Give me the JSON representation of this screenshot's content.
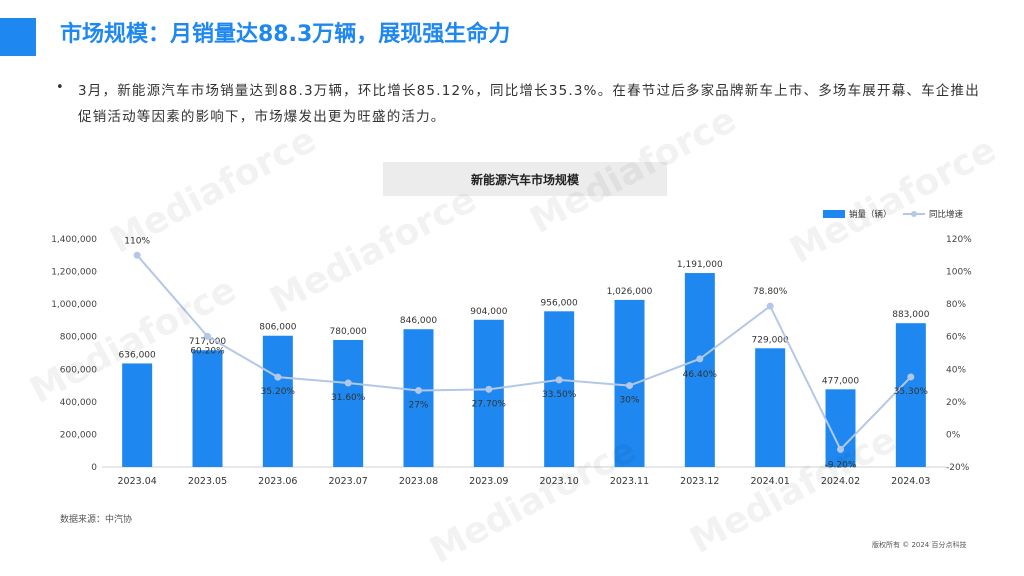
{
  "header": {
    "title": "市场规模：月销量达88.3万辆，展现强生命力"
  },
  "body": {
    "bullet": "•",
    "paragraph": "3月，新能源汽车市场销量达到88.3万辆，环比增长85.12%，同比增长35.3%。在春节过后多家品牌新车上市、多场车展开幕、车企推出促销活动等因素的影响下，市场爆发出更为旺盛的活力。"
  },
  "chart_title": "新能源汽车市场规模",
  "source": "数据来源：中汽协",
  "copyright": "版权所有 © 2024 百分点科技",
  "watermark": "Mediaforce",
  "colors": {
    "bar": "#1e88f0",
    "line": "#b3c8e8",
    "accent": "#1e88f0"
  },
  "chart_data": {
    "type": "bar",
    "title": "新能源汽车市场规模",
    "categories": [
      "2023.04",
      "2023.05",
      "2023.06",
      "2023.07",
      "2023.08",
      "2023.09",
      "2023.10",
      "2023.11",
      "2023.12",
      "2024.01",
      "2024.02",
      "2024.03"
    ],
    "series": [
      {
        "name": "销量（辆）",
        "type": "bar",
        "axis": "left",
        "values": [
          636000,
          717000,
          806000,
          780000,
          846000,
          904000,
          956000,
          1026000,
          1191000,
          729000,
          477000,
          883000
        ],
        "labels": [
          "636,000",
          "717,000",
          "806,000",
          "780,000",
          "846,000",
          "904,000",
          "956,000",
          "1,026,000",
          "1,191,000",
          "729,000",
          "477,000",
          "883,000"
        ]
      },
      {
        "name": "同比增速",
        "type": "line",
        "axis": "right",
        "values": [
          110,
          60.2,
          35.2,
          31.6,
          27,
          27.7,
          33.5,
          30,
          46.4,
          78.8,
          -9.2,
          35.3
        ],
        "labels": [
          "110%",
          "60.20%",
          "35.20%",
          "31.60%",
          "27%",
          "27.70%",
          "33.50%",
          "30%",
          "46.40%",
          "78.80%",
          "-9.20%",
          "35.30%"
        ]
      }
    ],
    "y_left": {
      "ylim": [
        0,
        1400000
      ],
      "ticks": [
        "0",
        "200,000",
        "400,000",
        "600,000",
        "800,000",
        "1,000,000",
        "1,200,000",
        "1,400,000"
      ]
    },
    "y_right": {
      "ylim": [
        -20,
        120
      ],
      "ticks": [
        "-20%",
        "0%",
        "20%",
        "40%",
        "60%",
        "80%",
        "100%",
        "120%"
      ]
    },
    "legend_position": "top-right",
    "grid": false
  }
}
